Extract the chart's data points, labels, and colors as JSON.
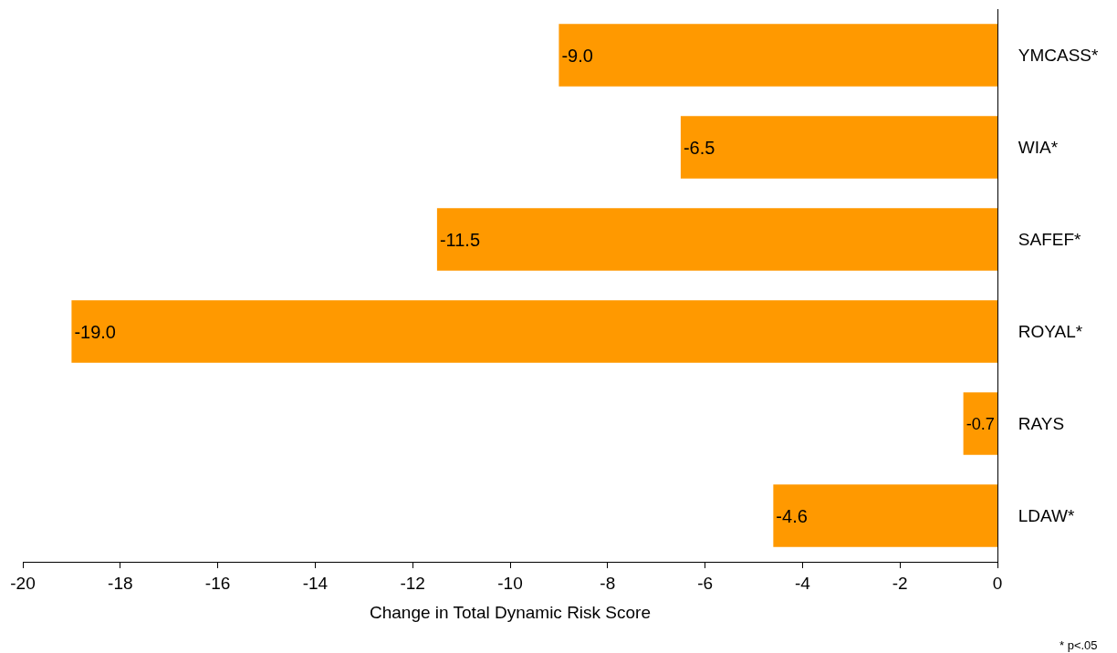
{
  "chart_data": {
    "type": "bar",
    "orientation": "horizontal",
    "categories": [
      "YMCASS*",
      "WIA*",
      "SAFEF*",
      "ROYAL*",
      "RAYS",
      "LDAW*"
    ],
    "values": [
      -9.0,
      -6.5,
      -11.5,
      -19.0,
      -0.7,
      -4.6
    ],
    "value_labels": [
      "-9.0",
      "-6.5",
      "-11.5",
      "-19.0",
      "-0.7",
      "-4.6"
    ],
    "color": "#ff9900",
    "xlim": [
      -20,
      0
    ],
    "xticks": [
      -20,
      -18,
      -16,
      -14,
      -12,
      -10,
      -8,
      -6,
      -4,
      -2,
      0
    ],
    "xlabel": "Change in Total Dynamic Risk Score",
    "annotations": [
      "* p<.05"
    ],
    "legend": false
  }
}
